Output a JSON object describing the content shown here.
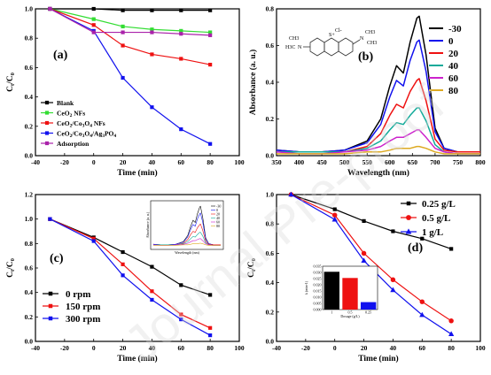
{
  "watermark": "Journal Pre-proof",
  "chart_data": [
    {
      "panel": "(a)",
      "type": "line",
      "xlabel": "Time (min)",
      "ylabel": "C_t/C_0",
      "xlim": [
        -40,
        100
      ],
      "ylim": [
        0.0,
        1.0
      ],
      "xticks": [
        -40,
        -20,
        0,
        20,
        40,
        60,
        80,
        100
      ],
      "yticks": [
        0.0,
        0.2,
        0.4,
        0.6,
        0.8,
        1.0
      ],
      "x": [
        -30,
        0,
        20,
        40,
        60,
        80
      ],
      "series": [
        {
          "name": "Blank",
          "color": "#000000",
          "marker": "square",
          "values": [
            1.0,
            1.0,
            0.99,
            0.99,
            0.99,
            0.99
          ]
        },
        {
          "name": "CeO2 NFs",
          "color": "#33dd33",
          "marker": "square",
          "values": [
            1.0,
            0.93,
            0.88,
            0.86,
            0.85,
            0.84
          ]
        },
        {
          "name": "CeO2/Co3O4 NFs",
          "color": "#ee1111",
          "marker": "square",
          "values": [
            1.0,
            0.89,
            0.75,
            0.69,
            0.66,
            0.62
          ]
        },
        {
          "name": "CeO2/Co3O4/Ag3PO4",
          "color": "#1111ee",
          "marker": "square",
          "values": [
            1.0,
            0.85,
            0.53,
            0.33,
            0.18,
            0.08
          ]
        },
        {
          "name": "Adsorption",
          "color": "#aa22aa",
          "marker": "square",
          "values": [
            1.0,
            0.84,
            0.84,
            0.84,
            0.83,
            0.82
          ]
        }
      ],
      "legend": [
        {
          "name": "Blank",
          "sub": ""
        },
        {
          "name": "CeO",
          "sub": "2",
          "rest": " NFs"
        },
        {
          "name": "CeO",
          "sub": "2",
          "rest": "/Co",
          "sub2": "3",
          "rest2": "O",
          "sub3": "4",
          "rest3": " NFs"
        },
        {
          "name": "CeO",
          "sub": "2",
          "rest": "/Co",
          "sub2": "3",
          "rest2": "O",
          "sub3": "4",
          "rest3": "/Ag",
          "sub4": "3",
          "rest4": "PO",
          "sub5": "4"
        },
        {
          "name": "Adsorption",
          "sub": ""
        }
      ],
      "legend_position": "bottom-left"
    },
    {
      "panel": "(b)",
      "type": "line",
      "xlabel": "Wavelength (nm)",
      "ylabel": "Absorbance (a. u.)",
      "xlim": [
        350,
        800
      ],
      "ylim": [
        0.0,
        0.8
      ],
      "xticks": [
        350,
        400,
        450,
        500,
        550,
        600,
        650,
        700,
        750,
        800
      ],
      "yticks": [
        0.0,
        0.2,
        0.4,
        0.6,
        0.8
      ],
      "x": [
        350,
        400,
        450,
        500,
        550,
        580,
        600,
        615,
        630,
        645,
        660,
        665,
        680,
        700,
        720,
        750,
        800
      ],
      "series": [
        {
          "name": "-30",
          "color": "#000000",
          "values": [
            0.03,
            0.02,
            0.02,
            0.03,
            0.08,
            0.2,
            0.38,
            0.49,
            0.45,
            0.62,
            0.75,
            0.76,
            0.55,
            0.15,
            0.04,
            0.02,
            0.02
          ]
        },
        {
          "name": "0",
          "color": "#1111ee",
          "values": [
            0.03,
            0.02,
            0.02,
            0.03,
            0.07,
            0.17,
            0.32,
            0.41,
            0.38,
            0.52,
            0.62,
            0.63,
            0.46,
            0.13,
            0.04,
            0.02,
            0.02
          ]
        },
        {
          "name": "20",
          "color": "#ee1111",
          "values": [
            0.02,
            0.02,
            0.02,
            0.02,
            0.05,
            0.12,
            0.22,
            0.28,
            0.26,
            0.35,
            0.41,
            0.42,
            0.3,
            0.09,
            0.03,
            0.02,
            0.02
          ]
        },
        {
          "name": "40",
          "color": "#11aa99",
          "values": [
            0.02,
            0.02,
            0.02,
            0.02,
            0.04,
            0.08,
            0.14,
            0.18,
            0.17,
            0.22,
            0.26,
            0.26,
            0.19,
            0.06,
            0.02,
            0.01,
            0.01
          ]
        },
        {
          "name": "60",
          "color": "#cc22cc",
          "values": [
            0.02,
            0.01,
            0.01,
            0.02,
            0.03,
            0.05,
            0.08,
            0.1,
            0.1,
            0.12,
            0.14,
            0.14,
            0.1,
            0.04,
            0.02,
            0.01,
            0.01
          ]
        },
        {
          "name": "80",
          "color": "#ddaa22",
          "values": [
            0.01,
            0.01,
            0.01,
            0.01,
            0.02,
            0.02,
            0.03,
            0.04,
            0.04,
            0.04,
            0.05,
            0.05,
            0.04,
            0.02,
            0.01,
            0.01,
            0.01
          ]
        }
      ],
      "structure_labels": [
        "H3C",
        "N",
        "CH3",
        "S+",
        "Cl-",
        "N",
        "CH3",
        "CH3"
      ],
      "legend_position": "right"
    },
    {
      "panel": "(c)",
      "type": "line",
      "xlabel": "Time (min)",
      "ylabel": "C_t/C_0",
      "xlim": [
        -40,
        100
      ],
      "ylim": [
        0.0,
        1.2
      ],
      "xticks": [
        -40,
        -20,
        0,
        20,
        40,
        60,
        80,
        100
      ],
      "yticks": [
        0.0,
        0.2,
        0.4,
        0.6,
        0.8,
        1.0,
        1.2
      ],
      "x": [
        -30,
        0,
        20,
        40,
        60,
        80
      ],
      "series": [
        {
          "name": "0   rpm",
          "color": "#000000",
          "marker": "square",
          "values": [
            1.0,
            0.85,
            0.73,
            0.61,
            0.46,
            0.38
          ]
        },
        {
          "name": "150 rpm",
          "color": "#ee1111",
          "marker": "square",
          "values": [
            1.0,
            0.84,
            0.63,
            0.41,
            0.22,
            0.11
          ]
        },
        {
          "name": "300 rpm",
          "color": "#1111ee",
          "marker": "square",
          "values": [
            1.0,
            0.82,
            0.54,
            0.34,
            0.18,
            0.05
          ]
        }
      ],
      "legend_position": "bottom-left",
      "inset": {
        "type": "line",
        "xlabel": "Wavelength (nm)",
        "ylabel": "Absorbance (a. u.)",
        "legend": [
          "-30",
          "0",
          "20",
          "40",
          "60",
          "80"
        ]
      }
    },
    {
      "panel": "(d)",
      "type": "line",
      "xlabel": "Time (min)",
      "ylabel": "C_t/C_0",
      "xlim": [
        -40,
        100
      ],
      "ylim": [
        0.0,
        1.0
      ],
      "xticks": [
        -40,
        -20,
        0,
        20,
        40,
        60,
        80,
        100
      ],
      "yticks": [
        0.0,
        0.2,
        0.4,
        0.6,
        0.8,
        1.0
      ],
      "x": [
        -30,
        0,
        20,
        40,
        60,
        80
      ],
      "series": [
        {
          "name": "0.25 g/L",
          "color": "#000000",
          "marker": "square",
          "values": [
            1.0,
            0.9,
            0.82,
            0.75,
            0.7,
            0.63
          ]
        },
        {
          "name": "0.5   g/L",
          "color": "#ee1111",
          "marker": "circle",
          "values": [
            1.0,
            0.86,
            0.6,
            0.42,
            0.27,
            0.14
          ]
        },
        {
          "name": "1     g/L",
          "color": "#1111ee",
          "marker": "triangle",
          "values": [
            1.0,
            0.83,
            0.55,
            0.35,
            0.18,
            0.05
          ]
        }
      ],
      "legend_position": "top-right",
      "inset": {
        "type": "bar",
        "xlabel": "Dosage (g/L)",
        "ylabel": "k (min-1)",
        "categories": [
          "1",
          "0.5",
          "0.25"
        ],
        "values": [
          0.0305,
          0.0255,
          0.006
        ],
        "colors": [
          "#000000",
          "#ee1111",
          "#1111ee"
        ],
        "ylim": [
          0.0,
          0.035
        ],
        "yticks": [
          0.0,
          0.005,
          0.01,
          0.015,
          0.02,
          0.025,
          0.03,
          0.035
        ]
      }
    }
  ]
}
